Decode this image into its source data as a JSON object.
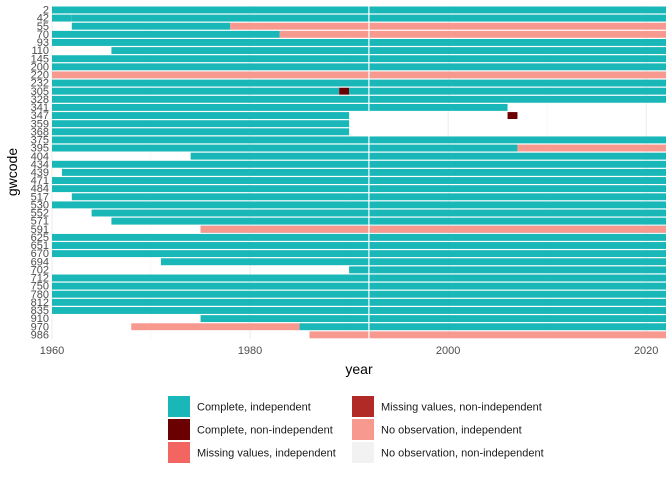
{
  "chart_data": {
    "type": "heatmap",
    "xlabel": "year",
    "ylabel": "gwcode",
    "xlim": [
      1960,
      2022
    ],
    "x_ticks": [
      1960,
      1980,
      2000,
      2020
    ],
    "y_tick_labels": [
      "2",
      "42",
      "55",
      "70",
      "93",
      "110",
      "145",
      "200",
      "220",
      "232",
      "305",
      "328",
      "341",
      "347",
      "359",
      "368",
      "375",
      "395",
      "404",
      "434",
      "439",
      "471",
      "484",
      "517",
      "530",
      "552",
      "571",
      "591",
      "625",
      "651",
      "670",
      "694",
      "702",
      "712",
      "750",
      "780",
      "812",
      "835",
      "910",
      "970",
      "986"
    ],
    "grid": true,
    "reference_line_x": 1992,
    "legend_position": "bottom",
    "colors": {
      "complete_independent": "#1ab7b9",
      "complete_non_independent": "#6b0000",
      "missing_independent": "#f26560",
      "missing_non_independent": "#b22a25",
      "no_obs_independent": "#f8998f",
      "no_obs_non_independent": "#f2f2f2"
    },
    "legend": [
      {
        "key": "complete_independent",
        "label": "Complete, independent"
      },
      {
        "key": "complete_non_independent",
        "label": "Complete, non-independent"
      },
      {
        "key": "missing_independent",
        "label": "Missing values, independent"
      },
      {
        "key": "missing_non_independent",
        "label": "Missing values, non-independent"
      },
      {
        "key": "no_obs_independent",
        "label": "No observation, independent"
      },
      {
        "key": "no_obs_non_independent",
        "label": "No observation, non-independent"
      }
    ],
    "rows": [
      {
        "gwcode": "2",
        "segments": [
          [
            1960,
            2022,
            "complete_independent"
          ]
        ]
      },
      {
        "gwcode": "42",
        "segments": [
          [
            1960,
            1962,
            "complete_independent"
          ],
          [
            1962,
            2022,
            "complete_independent"
          ]
        ]
      },
      {
        "gwcode": "55",
        "segments": [
          [
            1962,
            1978,
            "complete_independent"
          ],
          [
            1978,
            1981,
            "no_obs_independent"
          ],
          [
            1981,
            2022,
            "no_obs_independent"
          ]
        ]
      },
      {
        "gwcode": "70",
        "segments": [
          [
            1960,
            1983,
            "complete_independent"
          ],
          [
            1983,
            2022,
            "no_obs_independent"
          ]
        ]
      },
      {
        "gwcode": "93",
        "segments": [
          [
            1960,
            2022,
            "complete_independent"
          ]
        ]
      },
      {
        "gwcode": "110",
        "segments": [
          [
            1966,
            2022,
            "complete_independent"
          ]
        ]
      },
      {
        "gwcode": "145",
        "segments": [
          [
            1960,
            2022,
            "complete_independent"
          ]
        ]
      },
      {
        "gwcode": "200",
        "segments": [
          [
            1960,
            2022,
            "complete_independent"
          ]
        ]
      },
      {
        "gwcode": "220",
        "segments": [
          [
            1960,
            2022,
            "no_obs_independent"
          ]
        ]
      },
      {
        "gwcode": "232",
        "segments": [
          [
            1960,
            2022,
            "complete_independent"
          ]
        ]
      },
      {
        "gwcode": "305",
        "segments": [
          [
            1960,
            1989,
            "complete_independent"
          ],
          [
            1989,
            1990,
            "complete_non_independent"
          ],
          [
            1990,
            2022,
            "complete_independent"
          ]
        ]
      },
      {
        "gwcode": "328",
        "segments": [
          [
            1960,
            1991,
            "complete_independent"
          ],
          [
            1991,
            2022,
            "complete_independent"
          ]
        ]
      },
      {
        "gwcode": "341",
        "segments": [
          [
            1960,
            2006,
            "complete_independent"
          ]
        ]
      },
      {
        "gwcode": "347",
        "segments": [
          [
            1960,
            1990,
            "complete_independent"
          ],
          [
            2006,
            2007,
            "complete_non_independent"
          ]
        ]
      },
      {
        "gwcode": "359",
        "segments": [
          [
            1960,
            1990,
            "complete_independent"
          ]
        ]
      },
      {
        "gwcode": "368",
        "segments": [
          [
            1960,
            1990,
            "complete_independent"
          ]
        ]
      },
      {
        "gwcode": "375",
        "segments": [
          [
            1960,
            2022,
            "complete_independent"
          ]
        ]
      },
      {
        "gwcode": "395",
        "segments": [
          [
            1960,
            2007,
            "complete_independent"
          ],
          [
            2007,
            2022,
            "no_obs_independent"
          ]
        ]
      },
      {
        "gwcode": "404",
        "segments": [
          [
            1974,
            2022,
            "complete_independent"
          ]
        ]
      },
      {
        "gwcode": "434",
        "segments": [
          [
            1960,
            2022,
            "complete_independent"
          ]
        ]
      },
      {
        "gwcode": "439",
        "segments": [
          [
            1961,
            2022,
            "complete_independent"
          ]
        ]
      },
      {
        "gwcode": "471",
        "segments": [
          [
            1960,
            2022,
            "complete_independent"
          ]
        ]
      },
      {
        "gwcode": "484",
        "segments": [
          [
            1960,
            2022,
            "complete_independent"
          ]
        ]
      },
      {
        "gwcode": "517",
        "segments": [
          [
            1962,
            2022,
            "complete_independent"
          ]
        ]
      },
      {
        "gwcode": "530",
        "segments": [
          [
            1960,
            2022,
            "complete_independent"
          ]
        ]
      },
      {
        "gwcode": "552",
        "segments": [
          [
            1964,
            2022,
            "complete_independent"
          ]
        ]
      },
      {
        "gwcode": "571",
        "segments": [
          [
            1966,
            2022,
            "complete_independent"
          ]
        ]
      },
      {
        "gwcode": "591",
        "segments": [
          [
            1975,
            2022,
            "complete_independent"
          ],
          [
            1975,
            2022,
            "no_obs_independent"
          ]
        ]
      },
      {
        "gwcode": "625",
        "segments": [
          [
            1960,
            2022,
            "complete_independent"
          ]
        ]
      },
      {
        "gwcode": "651",
        "segments": [
          [
            1960,
            2022,
            "complete_independent"
          ]
        ]
      },
      {
        "gwcode": "670",
        "segments": [
          [
            1960,
            2022,
            "complete_independent"
          ]
        ]
      },
      {
        "gwcode": "694",
        "segments": [
          [
            1971,
            2022,
            "complete_independent"
          ]
        ]
      },
      {
        "gwcode": "702",
        "segments": [
          [
            1990,
            2022,
            "complete_independent"
          ]
        ]
      },
      {
        "gwcode": "712",
        "segments": [
          [
            1960,
            2022,
            "complete_independent"
          ]
        ]
      },
      {
        "gwcode": "750",
        "segments": [
          [
            1960,
            2022,
            "complete_independent"
          ]
        ]
      },
      {
        "gwcode": "780",
        "segments": [
          [
            1960,
            2022,
            "complete_independent"
          ]
        ]
      },
      {
        "gwcode": "812",
        "segments": [
          [
            1960,
            2022,
            "complete_independent"
          ]
        ]
      },
      {
        "gwcode": "835",
        "segments": [
          [
            1960,
            2022,
            "complete_independent"
          ]
        ]
      },
      {
        "gwcode": "910",
        "segments": [
          [
            1975,
            2022,
            "complete_independent"
          ]
        ]
      },
      {
        "gwcode": "970",
        "segments": [
          [
            1968,
            1985,
            "no_obs_independent"
          ],
          [
            1985,
            2022,
            "complete_independent"
          ]
        ]
      },
      {
        "gwcode": "986",
        "segments": [
          [
            1986,
            2022,
            "no_obs_independent"
          ]
        ]
      }
    ]
  }
}
